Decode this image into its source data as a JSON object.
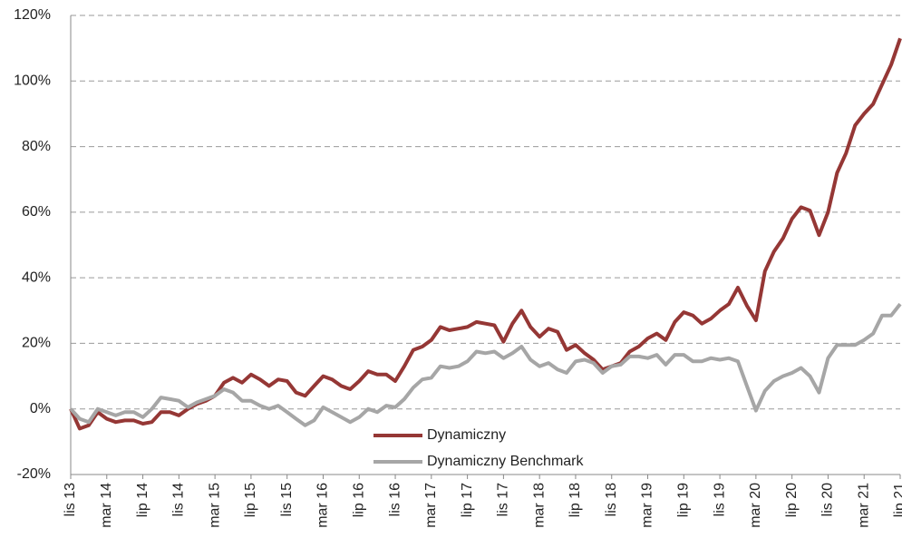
{
  "chart_data": {
    "type": "line",
    "categories": [
      "lis 13",
      null,
      null,
      null,
      "mar 14",
      null,
      null,
      null,
      "lip 14",
      null,
      null,
      null,
      "lis 14",
      null,
      null,
      null,
      "mar 15",
      null,
      null,
      null,
      "lip 15",
      null,
      null,
      null,
      "lis 15",
      null,
      null,
      null,
      "mar 16",
      null,
      null,
      null,
      "lip 16",
      null,
      null,
      null,
      "lis 16",
      null,
      null,
      null,
      "mar 17",
      null,
      null,
      null,
      "lip 17",
      null,
      null,
      null,
      "lis 17",
      null,
      null,
      null,
      "mar 18",
      null,
      null,
      null,
      "lip 18",
      null,
      null,
      null,
      "lis 18",
      null,
      null,
      null,
      "mar 19",
      null,
      null,
      null,
      "lip 19",
      null,
      null,
      null,
      "lis 19",
      null,
      null,
      null,
      "mar 20",
      null,
      null,
      null,
      "lip 20",
      null,
      null,
      null,
      "lis 20",
      null,
      null,
      null,
      "mar 21",
      null,
      null,
      null,
      "lip 21"
    ],
    "series": [
      {
        "name": "Dynamiczny",
        "color": "#953735",
        "values": [
          0,
          -6,
          -5,
          -1,
          -3,
          -4,
          -3.5,
          -3.5,
          -4.5,
          -4,
          -1,
          -1,
          -2,
          0,
          1.5,
          2.5,
          4,
          8,
          9.5,
          8,
          10.5,
          9,
          7,
          9,
          8.5,
          5,
          4,
          7,
          10,
          9,
          7,
          6,
          8.5,
          11.5,
          10.5,
          10.5,
          8.5,
          13,
          18,
          19,
          21,
          25,
          24,
          24.5,
          25,
          26.5,
          26,
          25.5,
          20.5,
          26,
          30,
          25,
          22,
          24.5,
          23.5,
          18,
          19.5,
          17,
          15,
          12,
          13,
          14,
          17.5,
          19,
          21.5,
          23,
          21,
          26.5,
          29.5,
          28.5,
          26,
          27.5,
          30,
          32,
          37,
          31.5,
          27,
          42,
          48,
          52,
          58,
          61.5,
          60.5,
          53,
          60,
          72,
          78,
          86.5,
          90,
          93,
          99,
          105,
          113
        ]
      },
      {
        "name": "Dynamiczny Benchmark",
        "color": "#a6a6a6",
        "values": [
          0,
          -3,
          -4,
          0,
          -1,
          -2,
          -1,
          -1,
          -2.5,
          0,
          3.5,
          3,
          2.5,
          0.5,
          2,
          3,
          4,
          6,
          5,
          2.5,
          2.5,
          1,
          0,
          1,
          -1,
          -3,
          -5,
          -3.5,
          0.5,
          -1,
          -2.5,
          -4,
          -2.5,
          0,
          -1,
          1,
          0.5,
          3,
          6.5,
          9,
          9.5,
          13,
          12.5,
          13,
          14.5,
          17.5,
          17,
          17.5,
          15.5,
          17,
          19,
          15,
          13,
          14,
          12,
          11,
          14.5,
          15,
          14,
          11,
          13,
          13.5,
          16,
          16,
          15.5,
          16.5,
          13.5,
          16.5,
          16.5,
          14.5,
          14.5,
          15.5,
          15,
          15.5,
          14.5,
          7,
          -0.5,
          5.5,
          8.5,
          10,
          11,
          12.5,
          10,
          5,
          15.5,
          19.5,
          19.5,
          19.5,
          21,
          23,
          28.5,
          28.5,
          32
        ]
      }
    ],
    "ylim": [
      -20,
      120
    ],
    "yticks": [
      {
        "value": -20,
        "label": "-20%"
      },
      {
        "value": 0,
        "label": "0%"
      },
      {
        "value": 20,
        "label": "20%"
      },
      {
        "value": 40,
        "label": "40%"
      },
      {
        "value": 60,
        "label": "60%"
      },
      {
        "value": 80,
        "label": "80%"
      },
      {
        "value": 100,
        "label": "100%"
      },
      {
        "value": 120,
        "label": "120%"
      }
    ],
    "grid": true,
    "legend": "bottom-center"
  }
}
